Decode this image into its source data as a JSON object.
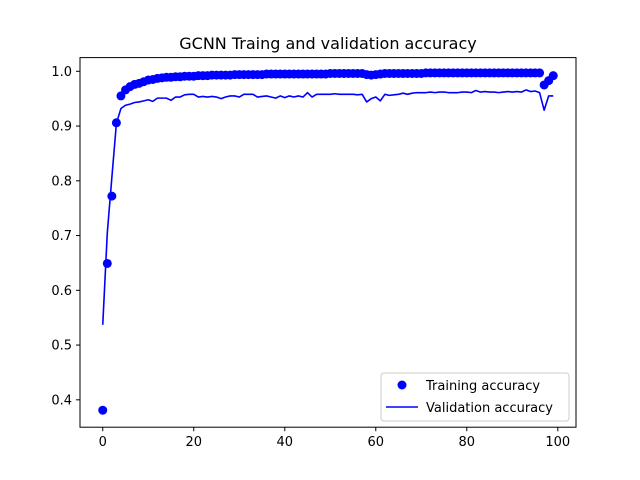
{
  "chart_data": {
    "type": "line",
    "title": "GCNN Traing and validation accuracy",
    "xlabel": "",
    "ylabel": "",
    "xlim": [
      -5,
      104
    ],
    "ylim": [
      0.35,
      1.025
    ],
    "x_ticks": [
      0,
      20,
      40,
      60,
      80,
      100
    ],
    "y_ticks": [
      0.4,
      0.5,
      0.6,
      0.7,
      0.8,
      0.9,
      1.0
    ],
    "y_tick_labels": [
      "0.4",
      "0.5",
      "0.6",
      "0.7",
      "0.8",
      "0.9",
      "1.0"
    ],
    "grid": false,
    "legend_position": "lower-right",
    "colors": {
      "series": "#0000ff",
      "axes": "#000000",
      "background": "#ffffff"
    },
    "series": [
      {
        "name": "Training accuracy",
        "style": "markers",
        "x": [
          0,
          1,
          2,
          3,
          4,
          5,
          6,
          7,
          8,
          9,
          10,
          11,
          12,
          13,
          14,
          15,
          16,
          17,
          18,
          19,
          20,
          21,
          22,
          23,
          24,
          25,
          26,
          27,
          28,
          29,
          30,
          31,
          32,
          33,
          34,
          35,
          36,
          37,
          38,
          39,
          40,
          41,
          42,
          43,
          44,
          45,
          46,
          47,
          48,
          49,
          50,
          51,
          52,
          53,
          54,
          55,
          56,
          57,
          58,
          59,
          60,
          61,
          62,
          63,
          64,
          65,
          66,
          67,
          68,
          69,
          70,
          71,
          72,
          73,
          74,
          75,
          76,
          77,
          78,
          79,
          80,
          81,
          82,
          83,
          84,
          85,
          86,
          87,
          88,
          89,
          90,
          91,
          92,
          93,
          94,
          95,
          96,
          97,
          98,
          99
        ],
        "values": [
          0.381,
          0.649,
          0.772,
          0.906,
          0.955,
          0.966,
          0.972,
          0.976,
          0.978,
          0.981,
          0.984,
          0.985,
          0.987,
          0.988,
          0.989,
          0.989,
          0.99,
          0.99,
          0.991,
          0.991,
          0.991,
          0.992,
          0.992,
          0.992,
          0.993,
          0.993,
          0.993,
          0.993,
          0.993,
          0.994,
          0.994,
          0.994,
          0.994,
          0.994,
          0.994,
          0.994,
          0.995,
          0.995,
          0.995,
          0.995,
          0.995,
          0.995,
          0.995,
          0.995,
          0.995,
          0.995,
          0.995,
          0.995,
          0.995,
          0.995,
          0.996,
          0.996,
          0.996,
          0.996,
          0.996,
          0.996,
          0.996,
          0.996,
          0.994,
          0.993,
          0.994,
          0.995,
          0.996,
          0.996,
          0.996,
          0.996,
          0.996,
          0.996,
          0.996,
          0.996,
          0.996,
          0.997,
          0.997,
          0.997,
          0.997,
          0.997,
          0.997,
          0.997,
          0.997,
          0.997,
          0.997,
          0.997,
          0.997,
          0.997,
          0.997,
          0.997,
          0.997,
          0.997,
          0.997,
          0.997,
          0.997,
          0.997,
          0.997,
          0.997,
          0.997,
          0.997,
          0.997,
          0.975,
          0.983,
          0.992
        ]
      },
      {
        "name": "Validation accuracy",
        "style": "line",
        "x": [
          0,
          1,
          2,
          3,
          4,
          5,
          6,
          7,
          8,
          9,
          10,
          11,
          12,
          13,
          14,
          15,
          16,
          17,
          18,
          19,
          20,
          21,
          22,
          23,
          24,
          25,
          26,
          27,
          28,
          29,
          30,
          31,
          32,
          33,
          34,
          35,
          36,
          37,
          38,
          39,
          40,
          41,
          42,
          43,
          44,
          45,
          46,
          47,
          48,
          49,
          50,
          51,
          52,
          53,
          54,
          55,
          56,
          57,
          58,
          59,
          60,
          61,
          62,
          63,
          64,
          65,
          66,
          67,
          68,
          69,
          70,
          71,
          72,
          73,
          74,
          75,
          76,
          77,
          78,
          79,
          80,
          81,
          82,
          83,
          84,
          85,
          86,
          87,
          88,
          89,
          90,
          91,
          92,
          93,
          94,
          95,
          96,
          97,
          98,
          99
        ],
        "values": [
          0.537,
          0.705,
          0.806,
          0.905,
          0.932,
          0.938,
          0.94,
          0.943,
          0.944,
          0.946,
          0.948,
          0.945,
          0.951,
          0.951,
          0.951,
          0.947,
          0.953,
          0.953,
          0.957,
          0.958,
          0.958,
          0.953,
          0.954,
          0.953,
          0.954,
          0.953,
          0.95,
          0.953,
          0.955,
          0.955,
          0.953,
          0.958,
          0.958,
          0.958,
          0.953,
          0.954,
          0.955,
          0.953,
          0.951,
          0.955,
          0.952,
          0.955,
          0.953,
          0.955,
          0.953,
          0.961,
          0.953,
          0.958,
          0.958,
          0.958,
          0.958,
          0.959,
          0.958,
          0.958,
          0.958,
          0.958,
          0.957,
          0.958,
          0.944,
          0.95,
          0.953,
          0.946,
          0.958,
          0.956,
          0.957,
          0.958,
          0.96,
          0.958,
          0.96,
          0.961,
          0.961,
          0.961,
          0.962,
          0.961,
          0.962,
          0.962,
          0.961,
          0.961,
          0.961,
          0.962,
          0.962,
          0.961,
          0.965,
          0.962,
          0.963,
          0.962,
          0.962,
          0.961,
          0.962,
          0.963,
          0.962,
          0.963,
          0.962,
          0.966,
          0.963,
          0.964,
          0.961,
          0.929,
          0.955,
          0.955
        ]
      }
    ]
  }
}
